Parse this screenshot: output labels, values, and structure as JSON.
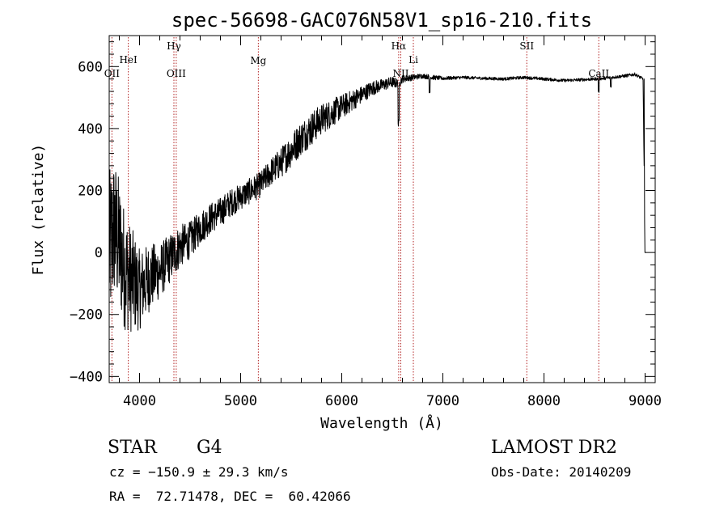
{
  "chart_data": {
    "type": "line",
    "title": "spec-56698-GAC076N58V1_sp16-210.fits",
    "xlabel": "Wavelength (Å)",
    "ylabel": "Flux (relative)",
    "xlim": [
      3700,
      9100
    ],
    "ylim": [
      -420,
      700
    ],
    "xticks": [
      4000,
      5000,
      6000,
      7000,
      8000,
      9000
    ],
    "yticks": [
      -400,
      -200,
      0,
      200,
      400,
      600
    ],
    "spectrum_envelope": {
      "x": [
        3700,
        3750,
        3800,
        3850,
        3900,
        3950,
        4000,
        4100,
        4200,
        4300,
        4400,
        4500,
        4600,
        4700,
        4800,
        4900,
        5000,
        5100,
        5200,
        5300,
        5400,
        5500,
        5600,
        5700,
        5800,
        5900,
        6000,
        6100,
        6200,
        6300,
        6400,
        6500,
        6560,
        6600,
        6700,
        6800,
        6900,
        7000,
        7200,
        7400,
        7600,
        7800,
        8000,
        8200,
        8400,
        8600,
        8800,
        8900,
        8980,
        9000
      ],
      "y": [
        0,
        80,
        20,
        -50,
        -80,
        -100,
        -120,
        -80,
        -60,
        -20,
        20,
        40,
        80,
        110,
        130,
        160,
        180,
        200,
        220,
        260,
        290,
        330,
        370,
        400,
        430,
        450,
        470,
        490,
        510,
        530,
        540,
        550,
        545,
        560,
        565,
        570,
        565,
        562,
        565,
        562,
        560,
        565,
        560,
        555,
        558,
        562,
        570,
        575,
        560,
        0
      ],
      "noise": [
        260,
        240,
        220,
        200,
        180,
        160,
        130,
        110,
        90,
        80,
        70,
        60,
        55,
        50,
        48,
        45,
        42,
        42,
        42,
        45,
        50,
        55,
        55,
        55,
        50,
        45,
        40,
        35,
        28,
        24,
        20,
        18,
        15,
        12,
        10,
        8,
        8,
        6,
        5,
        5,
        5,
        5,
        5,
        5,
        5,
        5,
        5,
        5,
        5,
        0
      ]
    },
    "spectral_lines": [
      {
        "label": "OII",
        "x": 3727
      },
      {
        "label": "HeI",
        "x": 3889
      },
      {
        "label": "Hγ",
        "x": 4340
      },
      {
        "label": "OIII",
        "x": 4363
      },
      {
        "label": "Mg",
        "x": 5175
      },
      {
        "label": "Hα",
        "x": 6563
      },
      {
        "label": "NII",
        "x": 6584
      },
      {
        "label": "Li",
        "x": 6708
      },
      {
        "label": "SII",
        "x": 7830
      },
      {
        "label": "CaII",
        "x": 8542
      }
    ]
  },
  "info": {
    "class": "STAR",
    "subclass": "G4",
    "survey": "LAMOST DR2",
    "cz": "cz = −150.9 ± 29.3 km/s",
    "obs_date": "Obs-Date: 20140209",
    "coords": "RA =  72.71478, DEC =  60.42066"
  },
  "colors": {
    "line_marker": "#b22222",
    "spectrum": "#000000"
  }
}
